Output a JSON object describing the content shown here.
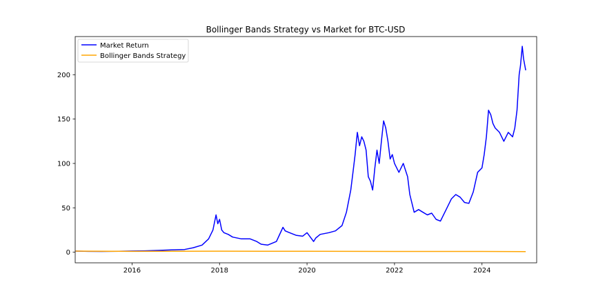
{
  "chart_data": {
    "type": "line",
    "title": "Bollinger Bands Strategy vs Market for BTC-USD",
    "xlabel": "",
    "ylabel": "",
    "xlim": [
      2014.7,
      2025.25
    ],
    "ylim": [
      -12,
      243
    ],
    "x_ticks": [
      2016,
      2018,
      2020,
      2022,
      2024
    ],
    "x_tick_labels": [
      "2016",
      "2018",
      "2020",
      "2022",
      "2024"
    ],
    "y_ticks": [
      0,
      50,
      100,
      150,
      200
    ],
    "y_tick_labels": [
      "0",
      "50",
      "100",
      "150",
      "200"
    ],
    "grid": false,
    "legend_position": "upper left",
    "series": [
      {
        "name": "Market Return",
        "color": "#0000ff",
        "x": [
          2014.71,
          2015.0,
          2015.3,
          2015.7,
          2016.0,
          2016.3,
          2016.6,
          2016.9,
          2017.2,
          2017.4,
          2017.6,
          2017.75,
          2017.85,
          2017.92,
          2017.96,
          2018.0,
          2018.05,
          2018.1,
          2018.2,
          2018.3,
          2018.5,
          2018.7,
          2018.85,
          2018.95,
          2019.1,
          2019.3,
          2019.45,
          2019.5,
          2019.6,
          2019.75,
          2019.9,
          2020.0,
          2020.15,
          2020.2,
          2020.3,
          2020.5,
          2020.65,
          2020.8,
          2020.9,
          2021.0,
          2021.05,
          2021.1,
          2021.15,
          2021.2,
          2021.25,
          2021.3,
          2021.35,
          2021.4,
          2021.45,
          2021.5,
          2021.55,
          2021.6,
          2021.65,
          2021.7,
          2021.75,
          2021.8,
          2021.85,
          2021.9,
          2021.95,
          2022.0,
          2022.05,
          2022.1,
          2022.2,
          2022.3,
          2022.35,
          2022.45,
          2022.55,
          2022.65,
          2022.75,
          2022.85,
          2022.95,
          2023.05,
          2023.1,
          2023.2,
          2023.3,
          2023.4,
          2023.5,
          2023.6,
          2023.7,
          2023.8,
          2023.9,
          2024.0,
          2024.05,
          2024.1,
          2024.15,
          2024.2,
          2024.25,
          2024.3,
          2024.4,
          2024.5,
          2024.6,
          2024.7,
          2024.75,
          2024.8,
          2024.85,
          2024.88,
          2024.92,
          2024.95,
          2025.0
        ],
        "y": [
          1.2,
          0.9,
          0.8,
          1.0,
          1.3,
          1.5,
          2.0,
          2.5,
          3.0,
          5.0,
          8.0,
          15.0,
          25.0,
          42.0,
          32.0,
          37.0,
          25.0,
          22.0,
          20.0,
          17.0,
          15.0,
          15.0,
          12.0,
          9.0,
          8.0,
          12.0,
          28.0,
          24.0,
          22.0,
          19.0,
          18.0,
          22.0,
          12.0,
          16.0,
          20.0,
          22.0,
          24.0,
          30.0,
          45.0,
          70.0,
          90.0,
          110.0,
          135.0,
          120.0,
          130.0,
          125.0,
          115.0,
          85.0,
          80.0,
          70.0,
          95.0,
          115.0,
          100.0,
          125.0,
          148.0,
          140.0,
          125.0,
          105.0,
          110.0,
          100.0,
          95.0,
          90.0,
          100.0,
          85.0,
          65.0,
          45.0,
          48.0,
          45.0,
          42.0,
          44.0,
          37.0,
          35.0,
          40.0,
          50.0,
          60.0,
          65.0,
          62.0,
          56.0,
          55.0,
          68.0,
          90.0,
          95.0,
          110.0,
          130.0,
          160.0,
          155.0,
          145.0,
          140.0,
          135.0,
          125.0,
          135.0,
          130.0,
          140.0,
          160.0,
          200.0,
          210.0,
          232.0,
          218.0,
          205.0
        ]
      },
      {
        "name": "Bollinger Bands Strategy",
        "color": "#ffa500",
        "x": [
          2014.71,
          2016.0,
          2018.0,
          2020.0,
          2022.0,
          2024.0,
          2025.0
        ],
        "y": [
          1.2,
          0.9,
          1.1,
          1.0,
          0.8,
          0.8,
          0.7
        ]
      }
    ]
  }
}
